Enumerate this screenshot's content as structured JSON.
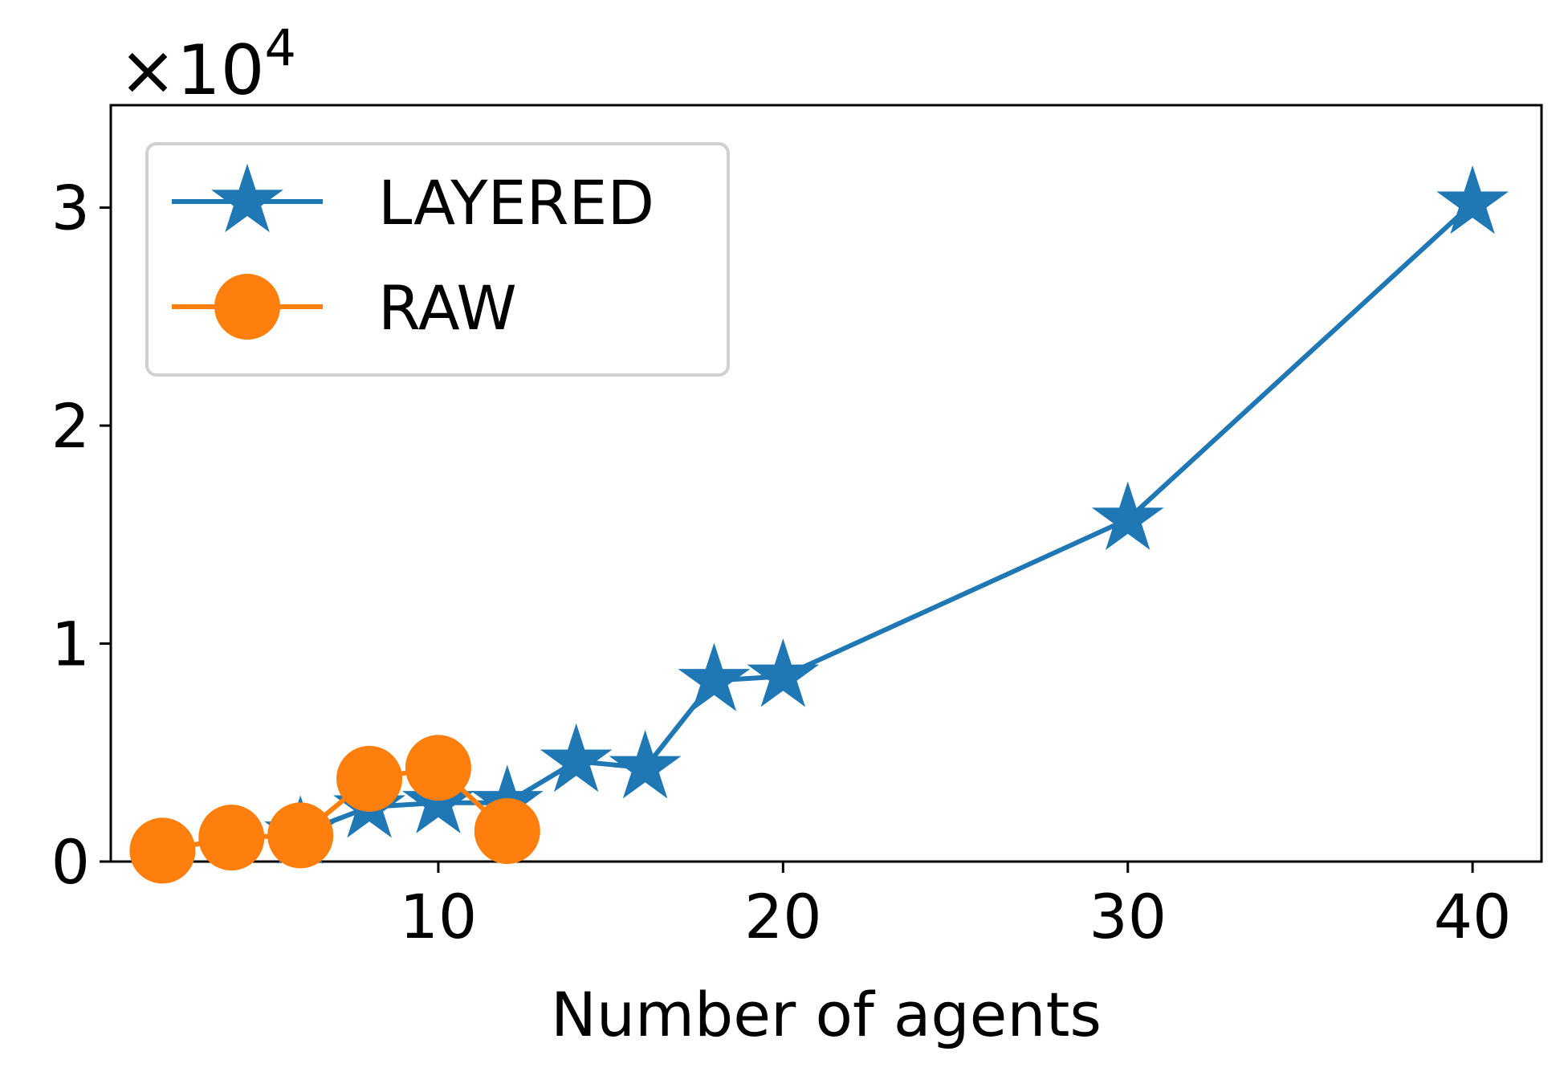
{
  "chart_data": {
    "type": "line",
    "title": "",
    "xlabel": "Number of agents",
    "ylabel": "",
    "y_multiplier": {
      "base": "×10",
      "exponent": "4"
    },
    "xlim": [
      0.5,
      42
    ],
    "ylim": [
      0,
      3.47
    ],
    "xticks": [
      10,
      20,
      30,
      40
    ],
    "yticks": [
      0,
      1,
      2,
      3
    ],
    "grid": false,
    "legend_position": "top-left",
    "series": [
      {
        "name": "LAYERED",
        "marker": "star",
        "color": "#1f77b4",
        "x": [
          6,
          8,
          10,
          12,
          14,
          16,
          18,
          20,
          30,
          40
        ],
        "y": [
          0.13,
          0.25,
          0.27,
          0.27,
          0.46,
          0.43,
          0.83,
          0.85,
          1.57,
          3.02
        ]
      },
      {
        "name": "RAW",
        "marker": "circle",
        "color": "#ff7f0e",
        "x": [
          2,
          4,
          6,
          8,
          10,
          12
        ],
        "y": [
          0.05,
          0.11,
          0.12,
          0.38,
          0.43,
          0.14
        ]
      }
    ]
  }
}
